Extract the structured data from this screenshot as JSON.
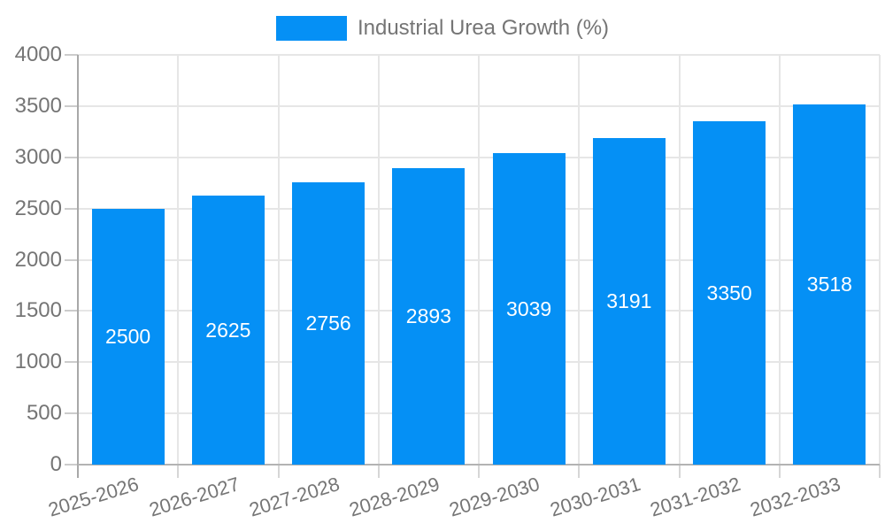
{
  "chart_data": {
    "type": "bar",
    "legend": "Industrial Urea Growth (%)",
    "legend_position": "top",
    "categories": [
      "2025-2026",
      "2026-2027",
      "2027-2028",
      "2028-2029",
      "2029-2030",
      "2030-2031",
      "2031-2032",
      "2032-2033"
    ],
    "series": [
      {
        "name": "Industrial Urea Growth (%)",
        "values": [
          2500,
          2625,
          2756,
          2893,
          3039,
          3191,
          3350,
          3518
        ]
      }
    ],
    "bar_labels": [
      "2500",
      "2625",
      "2756",
      "2893",
      "3039",
      "3191",
      "3350",
      "3518"
    ],
    "ylim": [
      0,
      4000
    ],
    "yticks": [
      0,
      500,
      1000,
      1500,
      2000,
      2500,
      3000,
      3500,
      4000
    ],
    "grid": true,
    "xlabel": "",
    "ylabel": "",
    "colors": {
      "bar": "#0590F5",
      "bar_label": "#FFFFFF",
      "axis_text": "#757575",
      "gridline": "#E6E6E6",
      "axis_line": "#A8A8A8",
      "baseline": "#B3B3B3",
      "tick_x": "#D6D6D6",
      "tick_y": "#CCCCCC",
      "background": "#FFFFFF"
    }
  }
}
